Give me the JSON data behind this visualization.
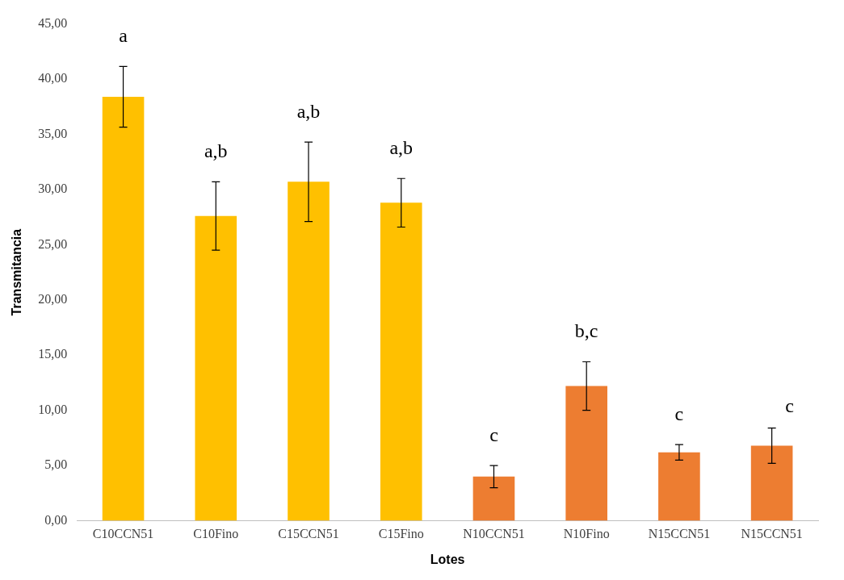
{
  "chart_data": {
    "type": "bar",
    "xlabel": "Lotes",
    "ylabel": "Transmitancia",
    "categories": [
      "C10CCN51",
      "C10Fino",
      "C15CCN51",
      "C15Fino",
      "N10CCN51",
      "N10Fino",
      "N15CCN51",
      "N15CCN51"
    ],
    "values": [
      38.4,
      27.6,
      30.7,
      28.8,
      4.0,
      12.2,
      6.2,
      6.8
    ],
    "colors": [
      "#ffc000",
      "#ffc000",
      "#ffc000",
      "#ffc000",
      "#ed7d31",
      "#ed7d31",
      "#ed7d31",
      "#ed7d31"
    ],
    "errors": [
      2.75,
      3.1,
      3.6,
      2.2,
      1.0,
      2.2,
      0.7,
      1.6
    ],
    "ylim": [
      0,
      45
    ],
    "yticks": [
      {
        "value": 0,
        "label": "0,00"
      },
      {
        "value": 5,
        "label": "5,00"
      },
      {
        "value": 10,
        "label": "10,00"
      },
      {
        "value": 15,
        "label": "15,00"
      },
      {
        "value": 20,
        "label": "20,00"
      },
      {
        "value": 25,
        "label": "25,00"
      },
      {
        "value": 30,
        "label": "30,00"
      },
      {
        "value": 35,
        "label": "35,00"
      },
      {
        "value": 40,
        "label": "40,00"
      },
      {
        "value": 45,
        "label": "45,00"
      }
    ],
    "annotations": [
      "a",
      "a,b",
      "a,b",
      "a,b",
      "c",
      "b,c",
      "c",
      "c"
    ],
    "grid": false,
    "legend": false
  }
}
